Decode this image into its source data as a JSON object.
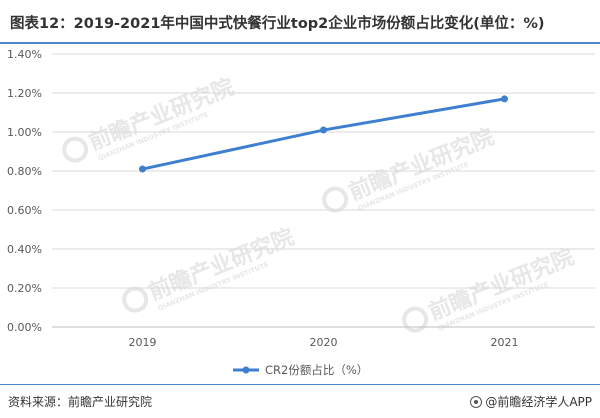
{
  "title": "图表12：2019-2021年中国中式快餐行业top2企业市场份额占比变化(单位：%)",
  "watermark": {
    "brand_cn": "前瞻产业研究院",
    "brand_en": "QIANZHAN INDUSTRY INSTITUTE"
  },
  "footer": {
    "source": "资料来源：前瞻产业研究院",
    "brand": "@前瞻经济学人APP",
    "brand_icon": "qianzhan-logo-icon"
  },
  "colors": {
    "series": "#3f7fd0",
    "grid": "#d9d9d9",
    "accent": "#4a86c8"
  },
  "chart_data": {
    "type": "line",
    "categories": [
      "2019",
      "2020",
      "2021"
    ],
    "series": [
      {
        "name": "CR2份额占比（%）",
        "values": [
          0.81,
          1.01,
          1.17
        ]
      }
    ],
    "ylim": [
      0,
      1.4
    ],
    "yticks": [
      0,
      0.2,
      0.4,
      0.6,
      0.8,
      1.0,
      1.2,
      1.4
    ],
    "ytick_labels": [
      "0.00%",
      "0.20%",
      "0.40%",
      "0.60%",
      "0.80%",
      "1.00%",
      "1.20%",
      "1.40%"
    ],
    "grid": true,
    "legend": "bottom-center"
  }
}
